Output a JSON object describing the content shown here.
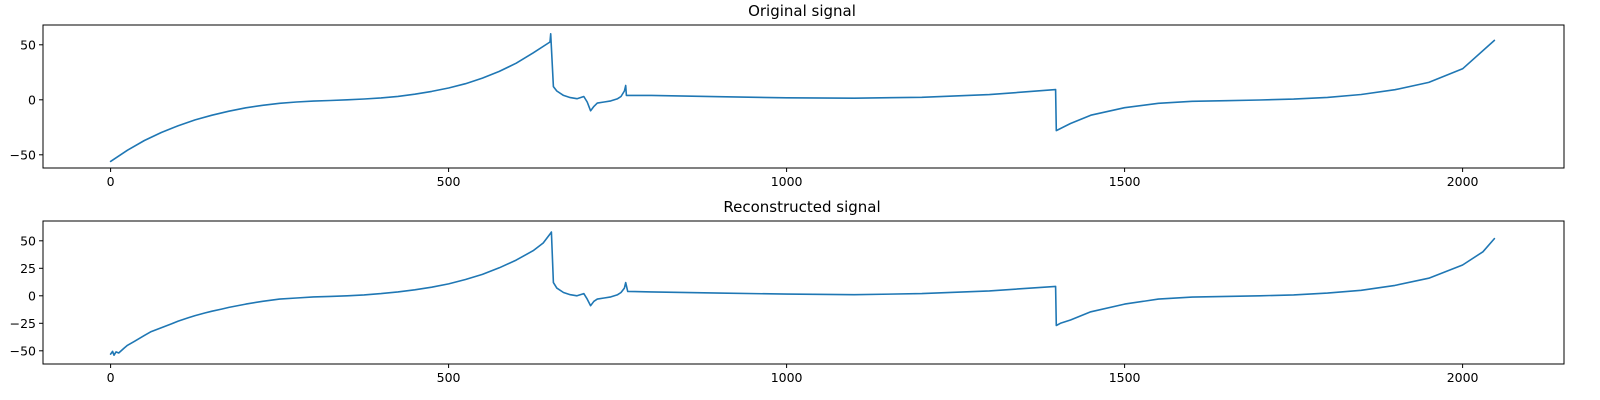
{
  "chart_data": [
    {
      "type": "line",
      "title": "Original signal",
      "xlabel": "",
      "ylabel": "",
      "xlim": [
        -100,
        2150
      ],
      "ylim": [
        -62,
        68
      ],
      "xticks": [
        0,
        500,
        1000,
        1500,
        2000
      ],
      "yticks": [
        -50,
        0,
        50
      ],
      "grid": false,
      "line_color": "#1f77b4",
      "series": [
        {
          "x": [
            0,
            25,
            50,
            75,
            100,
            125,
            150,
            175,
            200,
            225,
            250,
            275,
            300,
            325,
            350,
            375,
            400,
            425,
            450,
            475,
            500,
            525,
            550,
            575,
            600,
            625,
            650,
            651,
            655,
            660,
            670,
            680,
            690,
            700,
            705,
            710,
            715,
            720,
            730,
            740,
            750,
            755,
            760,
            762,
            763,
            800,
            900,
            1000,
            1100,
            1200,
            1300,
            1398,
            1399,
            1420,
            1450,
            1500,
            1550,
            1600,
            1650,
            1700,
            1750,
            1800,
            1850,
            1900,
            1950,
            2000,
            2047
          ],
          "y": [
            -56,
            -45.8,
            -37,
            -29.7,
            -23.5,
            -18.3,
            -14,
            -10.4,
            -7.3,
            -5,
            -3.2,
            -2,
            -1.2,
            -0.6,
            0,
            0.7,
            1.7,
            3.1,
            5.1,
            7.6,
            10.7,
            14.6,
            19.7,
            25.8,
            33.3,
            42.6,
            52.5,
            60,
            12,
            8,
            4,
            2,
            1,
            3,
            -2,
            -10,
            -6,
            -3,
            -2,
            -1,
            1,
            3,
            8,
            13,
            4,
            4,
            2.8,
            1.8,
            1.5,
            2.3,
            4.7,
            9.3,
            -28,
            -21.5,
            -14,
            -7.2,
            -3.2,
            -1.4,
            -0.8,
            -0.2,
            0.6,
            2.2,
            4.8,
            9.2,
            15.8,
            28.2,
            54
          ]
        }
      ]
    },
    {
      "type": "line",
      "title": "Reconstructed signal",
      "xlabel": "",
      "ylabel": "",
      "xlim": [
        -100,
        2150
      ],
      "ylim": [
        -62,
        68
      ],
      "xticks": [
        0,
        500,
        1000,
        1500,
        2000
      ],
      "yticks": [
        -50,
        -25,
        0,
        25,
        50
      ],
      "grid": false,
      "line_color": "#1f77b4",
      "series": [
        {
          "x": [
            0,
            3,
            5,
            8,
            12,
            20,
            25,
            35,
            50,
            60,
            75,
            90,
            100,
            115,
            125,
            140,
            150,
            165,
            175,
            200,
            225,
            250,
            275,
            300,
            325,
            350,
            375,
            400,
            425,
            450,
            475,
            500,
            525,
            550,
            575,
            600,
            625,
            640,
            651,
            652,
            655,
            660,
            670,
            680,
            690,
            700,
            705,
            710,
            715,
            720,
            730,
            740,
            750,
            755,
            760,
            762,
            765,
            800,
            900,
            1000,
            1100,
            1200,
            1300,
            1398,
            1399,
            1405,
            1420,
            1450,
            1500,
            1550,
            1600,
            1650,
            1700,
            1750,
            1800,
            1850,
            1900,
            1950,
            2000,
            2030,
            2047
          ],
          "y": [
            -53,
            -50.5,
            -54,
            -51,
            -52,
            -47.5,
            -45,
            -41.5,
            -36,
            -32.5,
            -29,
            -25.5,
            -23,
            -20,
            -18,
            -15.5,
            -14,
            -12,
            -10.5,
            -7.5,
            -5,
            -3,
            -2,
            -1,
            -0.5,
            0,
            0.8,
            2,
            3.5,
            5.5,
            7.8,
            10.8,
            14.8,
            19.5,
            25.5,
            32.5,
            41,
            48,
            57,
            58,
            12,
            7,
            3,
            1,
            0,
            2,
            -3,
            -9,
            -5,
            -3,
            -2,
            -1,
            1,
            3,
            7,
            12,
            4,
            3.5,
            2.5,
            1.5,
            1,
            2,
            4.5,
            8.5,
            -27,
            -25,
            -22,
            -14.5,
            -7.5,
            -3,
            -1.2,
            -0.5,
            0,
            0.8,
            2.5,
            5,
            9.5,
            16,
            28,
            40,
            52
          ]
        }
      ]
    }
  ]
}
